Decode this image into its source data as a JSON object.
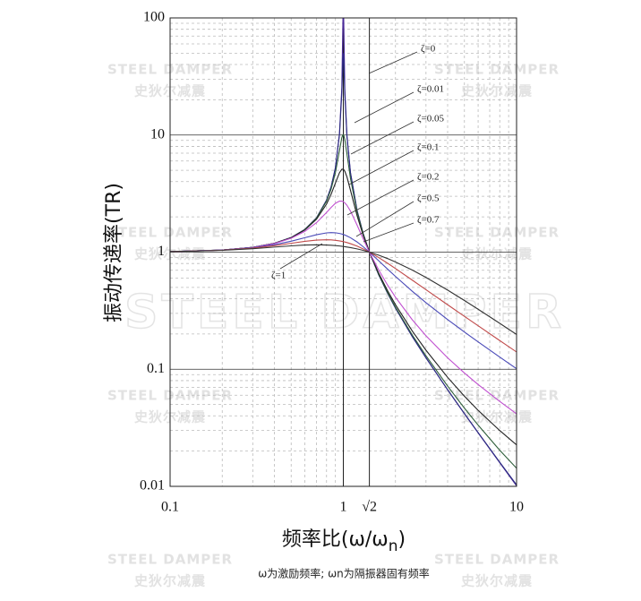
{
  "chart_data": {
    "type": "line",
    "ylabel": "振动传递率(TR)",
    "xlabel": {
      "text": "频率比(ω/ω",
      "subscript": "n",
      "close": ")"
    },
    "caption": "ω为激励频率; ωn为隔振器固有频率",
    "watermark": [
      "STEEL DAMPER",
      "史狄尔减震"
    ],
    "log_x": true,
    "log_y": true,
    "grid": true,
    "xlim": [
      0.1,
      10
    ],
    "xticks": [
      0.1,
      1,
      10
    ],
    "ylim": [
      0.01,
      100
    ],
    "yticks": [
      100,
      10,
      1,
      0.1,
      0.01
    ],
    "vlines": [
      1,
      1.414
    ],
    "vline_label": "√2",
    "x": [
      0.1,
      0.2,
      0.3,
      0.4,
      0.5,
      0.6,
      0.7,
      0.8,
      0.85,
      0.9,
      0.95,
      0.98,
      0.995,
      1,
      1.005,
      1.02,
      1.05,
      1.1,
      1.2,
      1.3,
      1.414,
      1.6,
      1.8,
      2,
      2.5,
      3,
      4,
      5,
      6,
      8,
      10
    ],
    "series": [
      {
        "name": "ζ=0",
        "color": "#4b2a9a",
        "values": [
          1.01,
          1.042,
          1.099,
          1.19,
          1.333,
          1.5625,
          1.961,
          2.778,
          3.604,
          5.263,
          10.26,
          25.25,
          100.3,
          null,
          99.75,
          24.75,
          9.756,
          4.762,
          2.273,
          1.449,
          1.001,
          0.641,
          0.446,
          0.333,
          0.19,
          0.125,
          0.0667,
          0.0417,
          0.0286,
          0.0159,
          0.0101
        ]
      },
      {
        "name": "ζ=0.01",
        "color": "#2a2a80",
        "values": [
          1.01,
          1.042,
          1.099,
          1.19,
          1.333,
          1.562,
          1.96,
          2.776,
          3.597,
          5.24,
          10.07,
          22.64,
          44.93,
          50.0,
          44.52,
          22.1,
          9.56,
          4.737,
          2.27,
          1.449,
          1.0,
          0.6412,
          0.4467,
          0.3334,
          0.1907,
          0.1252,
          0.06688,
          0.04187,
          0.02878,
          0.01607,
          0.0103
        ]
      },
      {
        "name": "ζ=0.05",
        "color": "#2e5e3a",
        "values": [
          1.01,
          1.042,
          1.099,
          1.19,
          1.332,
          1.558,
          1.947,
          2.72,
          3.458,
          4.776,
          7.379,
          9.506,
          10.05,
          10.05,
          9.951,
          9.162,
          6.853,
          4.244,
          2.208,
          1.436,
          1.001,
          0.6458,
          0.4521,
          0.3392,
          0.1961,
          0.1304,
          0.07178,
          0.04657,
          0.03331,
          0.02033,
          0.01428
        ]
      },
      {
        "name": "ζ=0.1",
        "color": "#222222",
        "values": [
          1.01,
          1.042,
          1.098,
          1.189,
          1.328,
          1.547,
          1.909,
          2.571,
          3.117,
          3.882,
          4.766,
          5.096,
          5.117,
          5.099,
          5.068,
          4.908,
          4.373,
          3.367,
          2.052,
          1.401,
          1.001,
          0.6593,
          0.4685,
          0.3559,
          0.212,
          0.1454,
          0.08525,
          0.05888,
          0.0446,
          0.02994,
          0.02258
        ]
      },
      {
        "name": "ζ=0.2",
        "color": "#c050d0",
        "values": [
          1.01,
          1.041,
          1.097,
          1.184,
          1.314,
          1.505,
          1.785,
          2.18,
          2.407,
          2.611,
          2.727,
          2.726,
          2.703,
          2.693,
          2.68,
          2.634,
          2.509,
          2.241,
          1.703,
          1.305,
          1.0,
          0.7041,
          0.5237,
          0.4125,
          0.2646,
          0.1931,
          0.1251,
          0.09285,
          0.07411,
          0.05315,
          0.04161
        ]
      },
      {
        "name": "ζ=0.5",
        "color": "#4a4ab8",
        "values": [
          1.01,
          1.04,
          1.09,
          1.158,
          1.24,
          1.329,
          1.409,
          1.46,
          1.468,
          1.463,
          1.444,
          1.428,
          1.418,
          1.414,
          1.411,
          1.399,
          1.374,
          1.327,
          1.222,
          1.114,
          1.0,
          0.8443,
          0.7166,
          0.6202,
          0.4631,
          0.3701,
          0.2656,
          0.208,
          0.1713,
          0.127,
          0.101
        ]
      },
      {
        "name": "ζ=0.7",
        "color": "#c04a4a",
        "values": [
          1.01,
          1.038,
          1.082,
          1.135,
          1.19,
          1.237,
          1.267,
          1.276,
          1.272,
          1.262,
          1.248,
          1.237,
          1.231,
          1.229,
          1.227,
          1.22,
          1.207,
          1.181,
          1.126,
          1.067,
          1.0,
          0.8987,
          0.8041,
          0.7245,
          0.5769,
          0.4778,
          0.3553,
          0.2828,
          0.235,
          0.1757,
          0.1404
        ]
      },
      {
        "name": "ζ=1",
        "color": "#333333",
        "values": [
          1.01,
          1.036,
          1.07,
          1.104,
          1.131,
          1.149,
          1.155,
          1.15,
          1.145,
          1.138,
          1.129,
          1.122,
          1.119,
          1.118,
          1.117,
          1.113,
          1.106,
          1.093,
          1.066,
          1.036,
          1.0,
          0.9417,
          0.8812,
          0.8246,
          0.7033,
          0.6083,
          0.4743,
          0.3865,
          0.3254,
          0.2466,
          0.1983
        ]
      }
    ]
  }
}
